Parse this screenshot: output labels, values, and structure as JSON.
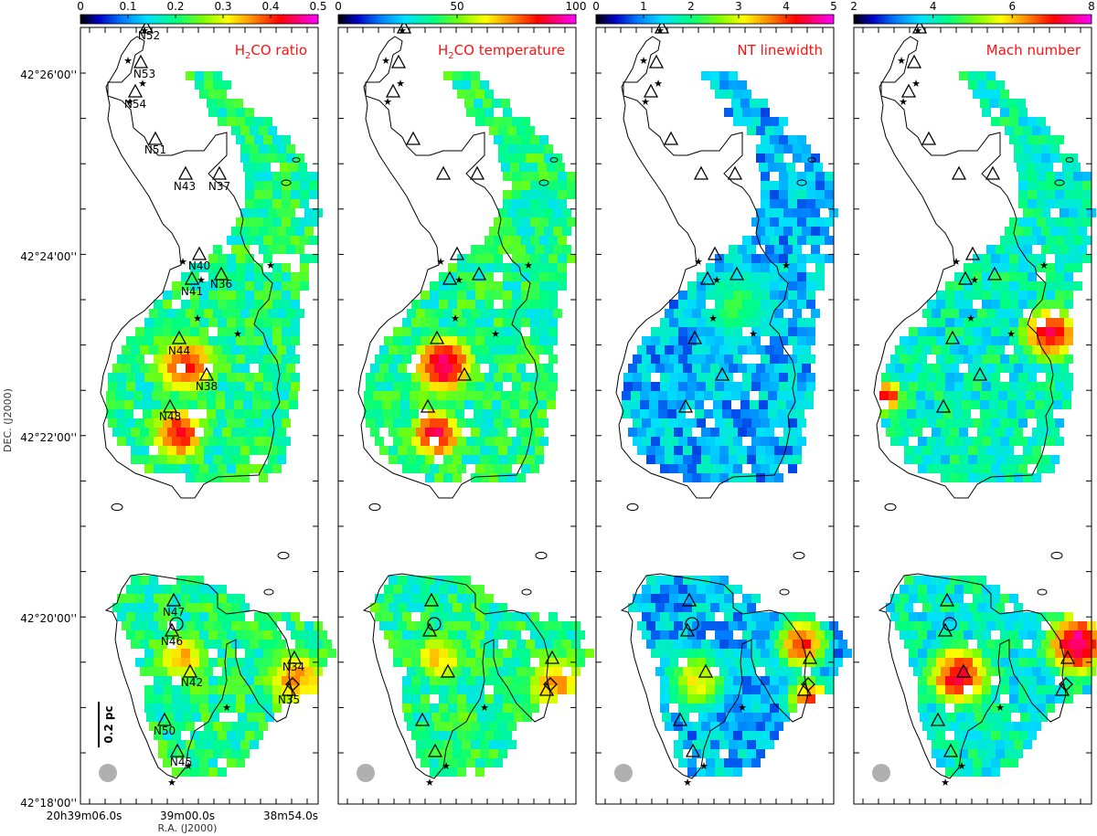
{
  "panels": [
    {
      "id": "ratio",
      "title_main": "H",
      "title_sub": "2",
      "title_rest": "CO ratio",
      "colorbar_ticks": [
        "0",
        "0.1",
        "0.2",
        "0.3",
        "0.4",
        "0.5"
      ],
      "seed": 11,
      "show_labels": true
    },
    {
      "id": "temperature",
      "title_main": "H",
      "title_sub": "2",
      "title_rest": "CO temperature",
      "colorbar_ticks": [
        "0",
        "50",
        "100"
      ],
      "seed": 23,
      "show_labels": false
    },
    {
      "id": "linewidth",
      "title_main": "NT linewidth",
      "title_sub": "",
      "title_rest": "",
      "colorbar_ticks": [
        "0",
        "1",
        "2",
        "3",
        "4",
        "5"
      ],
      "seed": 37,
      "show_labels": false
    },
    {
      "id": "mach",
      "title_main": "Mach number",
      "title_sub": "",
      "title_rest": "",
      "colorbar_ticks": [
        "2",
        "4",
        "6",
        "8"
      ],
      "seed": 41,
      "show_labels": false
    }
  ],
  "axes": {
    "ylabel": "DEC. (J2000)",
    "xlabel": "R.A. (J2000)",
    "dec_ticks": [
      "42°26'00''",
      "42°24'00''",
      "42°22'00''",
      "42°20'00''",
      "42°18'00''"
    ],
    "ra_ticks": [
      "20h39m06.0s",
      "39m00.0s",
      "38m54.0s"
    ]
  },
  "scalebar": {
    "label": "0.2 pc"
  },
  "sources": [
    "N52",
    "N53",
    "N54",
    "N51",
    "N43",
    "N37",
    "N40",
    "N41",
    "N36",
    "N44",
    "N38",
    "N48",
    "N47",
    "N46",
    "N42",
    "N34",
    "N35",
    "N50",
    "N45"
  ],
  "colors": {
    "text_red": "#ff1010",
    "beam": "#b0b0b0",
    "contour": "#000000"
  }
}
